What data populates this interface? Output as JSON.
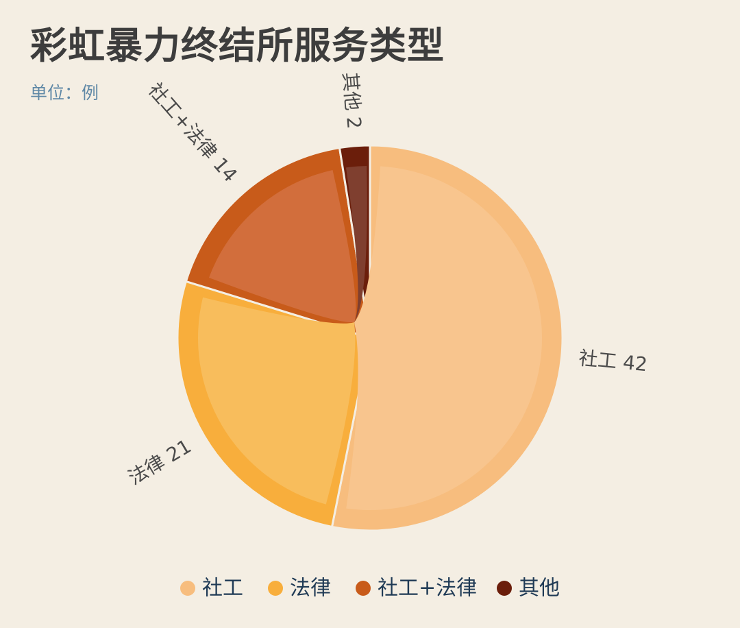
{
  "chart_data": {
    "type": "pie",
    "title": "彩虹暴力终结所服务类型",
    "subtitle": "单位：例",
    "categories": [
      "社工",
      "法律",
      "社工+法律",
      "其他"
    ],
    "values": [
      42,
      21,
      14,
      2
    ],
    "labels": [
      "社工 42",
      "法律 21",
      "社工+法律 14",
      "其他 2"
    ],
    "colors": [
      "#f7bd7e",
      "#f8ae3c",
      "#c85b1a",
      "#6b1e0b"
    ],
    "inner_colors": [
      "#f8c58e",
      "#f8bd5c",
      "#d26e3c",
      "#7f3f2f"
    ],
    "legend_placement": "bottom"
  }
}
